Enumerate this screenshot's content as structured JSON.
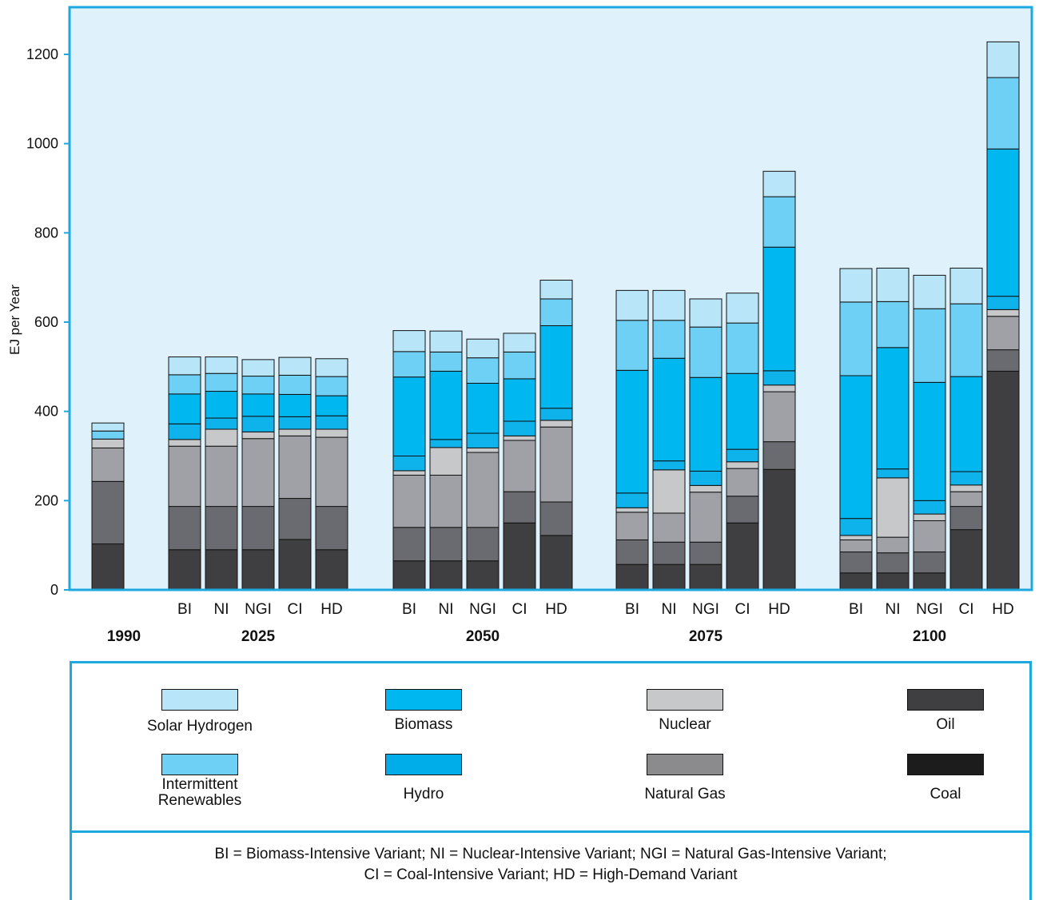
{
  "chart_data": {
    "type": "bar",
    "stacked": true,
    "ylabel": "EJ per Year",
    "ylim": [
      0,
      1300
    ],
    "yticks": [
      0,
      200,
      400,
      600,
      800,
      1000,
      1200
    ],
    "grid": false,
    "background": "#dff2fb",
    "frame_color": "#1ea8e0",
    "groups": [
      {
        "label": "1990",
        "bars": [
          ""
        ]
      },
      {
        "label": "2025",
        "bars": [
          "BI",
          "NI",
          "NGI",
          "CI",
          "HD"
        ]
      },
      {
        "label": "2050",
        "bars": [
          "BI",
          "NI",
          "NGI",
          "CI",
          "HD"
        ]
      },
      {
        "label": "2075",
        "bars": [
          "BI",
          "NI",
          "NGI",
          "CI",
          "HD"
        ]
      },
      {
        "label": "2100",
        "bars": [
          "BI",
          "NI",
          "NGI",
          "CI",
          "HD"
        ]
      }
    ],
    "stack_order": [
      "Coal",
      "Oil",
      "Natural Gas",
      "Nuclear",
      "Hydro",
      "Biomass",
      "Intermittent Renewables",
      "Solar Hydrogen"
    ],
    "series_colors": {
      "Coal": "#3f3f41",
      "Oil": "#6a6b70",
      "Natural Gas": "#a0a1a6",
      "Nuclear": "#c7c8ca",
      "Hydro": "#0fb3ec",
      "Biomass": "#00b8ef",
      "Intermittent Renewables": "#6fd0f5",
      "Solar Hydrogen": "#b8e6f8"
    },
    "stacks": [
      [
        [
          103,
          140,
          75,
          20,
          0,
          0,
          18,
          18
        ]
      ],
      [
        [
          90,
          97,
          135,
          15,
          35,
          67,
          43,
          40
        ],
        [
          90,
          97,
          135,
          38,
          25,
          60,
          40,
          37
        ],
        [
          90,
          97,
          152,
          15,
          35,
          50,
          40,
          37
        ],
        [
          113,
          92,
          140,
          15,
          28,
          50,
          43,
          40
        ],
        [
          90,
          97,
          155,
          18,
          30,
          45,
          43,
          40
        ]
      ],
      [
        [
          65,
          75,
          117,
          10,
          33,
          177,
          57,
          47
        ],
        [
          65,
          75,
          117,
          62,
          18,
          153,
          43,
          47
        ],
        [
          65,
          75,
          168,
          10,
          33,
          112,
          57,
          42
        ],
        [
          150,
          70,
          115,
          10,
          33,
          95,
          60,
          42
        ],
        [
          122,
          75,
          168,
          15,
          27,
          185,
          60,
          42
        ]
      ],
      [
        [
          57,
          55,
          62,
          10,
          33,
          275,
          112,
          67
        ],
        [
          57,
          50,
          65,
          97,
          20,
          230,
          85,
          67
        ],
        [
          57,
          50,
          112,
          15,
          32,
          210,
          113,
          63
        ],
        [
          150,
          60,
          62,
          15,
          28,
          170,
          113,
          67
        ],
        [
          270,
          62,
          112,
          15,
          32,
          277,
          113,
          57
        ]
      ],
      [
        [
          38,
          47,
          27,
          10,
          38,
          320,
          165,
          75
        ],
        [
          38,
          45,
          35,
          133,
          20,
          272,
          103,
          75
        ],
        [
          38,
          47,
          70,
          15,
          30,
          265,
          165,
          75
        ],
        [
          135,
          52,
          33,
          15,
          30,
          213,
          163,
          80
        ],
        [
          490,
          48,
          75,
          15,
          30,
          330,
          160,
          80
        ]
      ]
    ]
  },
  "legend": {
    "items": [
      {
        "label": "Solar Hydrogen",
        "color": "#b8e6f8"
      },
      {
        "label": "Biomass",
        "color": "#00b8ef"
      },
      {
        "label": "Nuclear",
        "color": "#c7c8ca"
      },
      {
        "label": "Oil",
        "color": "#3f3f41"
      },
      {
        "label": "Intermittent Renewables",
        "color": "#6fd0f5"
      },
      {
        "label": "Hydro",
        "color": "#00ade8"
      },
      {
        "label": "Natural Gas",
        "color": "#8b8b8e"
      },
      {
        "label": "Coal",
        "color": "#1c1c1d"
      }
    ],
    "abbreviations_line1": "BI = Biomass-Intensive Variant; NI = Nuclear-Intensive Variant; NGI = Natural Gas-Intensive Variant;",
    "abbreviations_line2": "CI = Coal-Intensive Variant; HD = High-Demand Variant"
  }
}
